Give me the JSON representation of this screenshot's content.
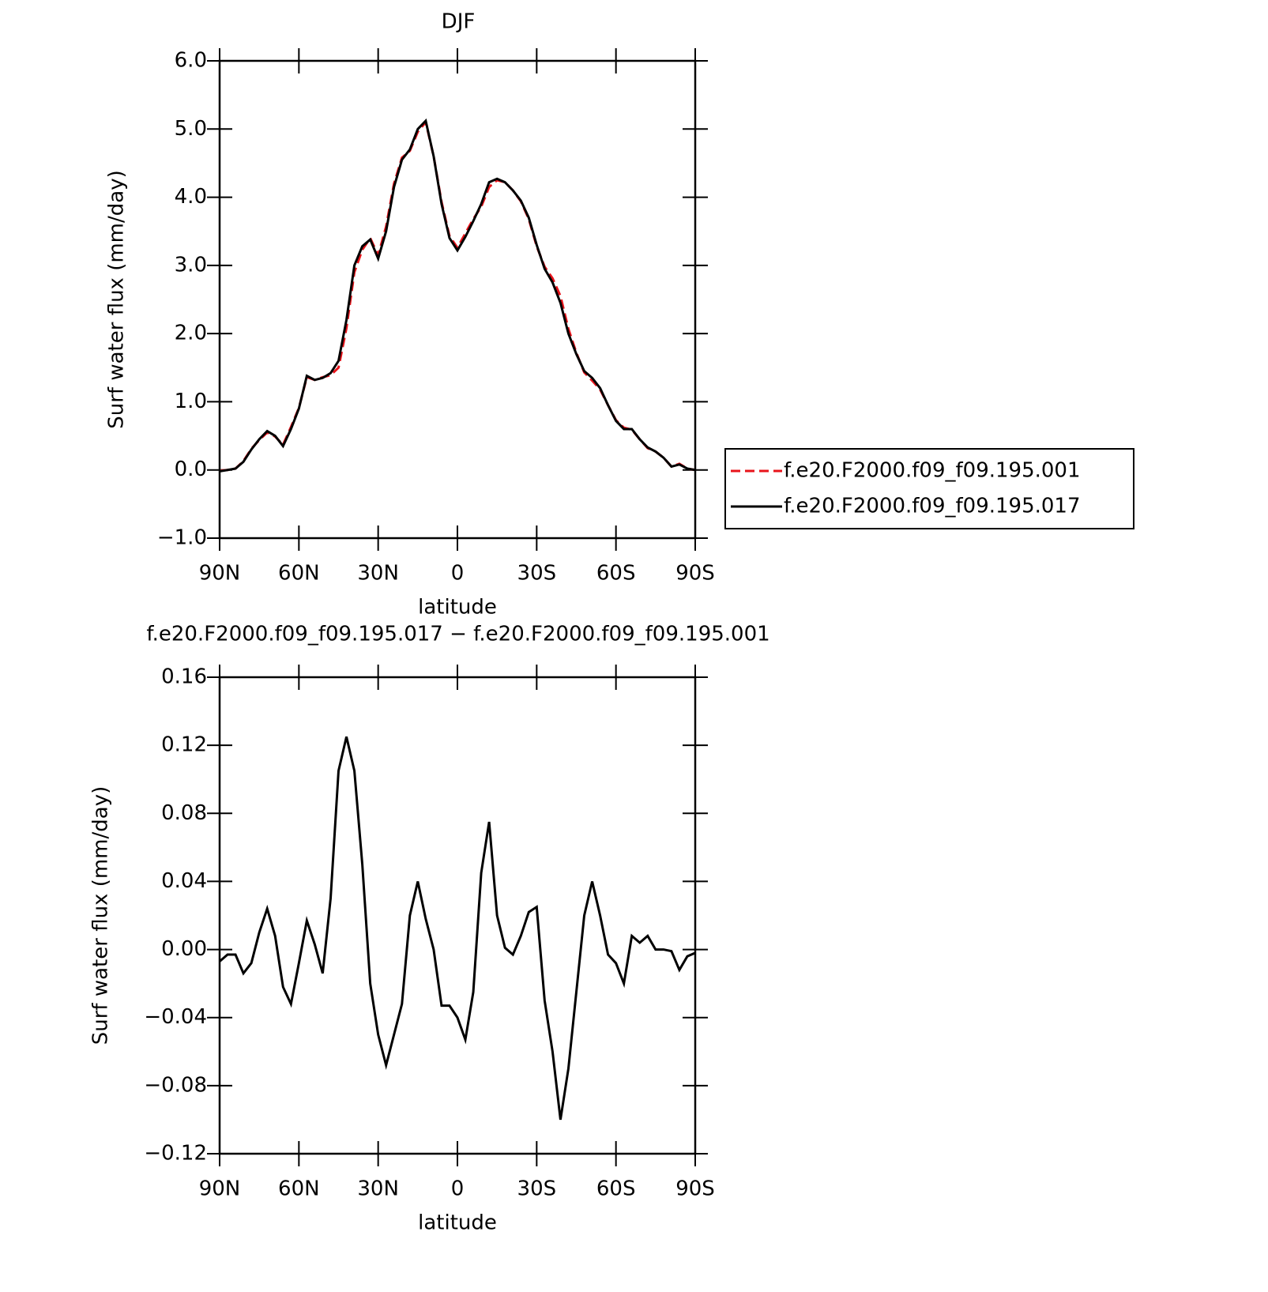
{
  "chart_data": [
    {
      "type": "line",
      "title": "DJF",
      "ylabel": "Surf water flux (mm/day)",
      "xlabel": "latitude",
      "x": [
        90,
        87,
        84,
        81,
        78,
        75,
        72,
        69,
        66,
        63,
        60,
        57,
        54,
        51,
        48,
        45,
        42,
        39,
        36,
        33,
        30,
        27,
        24,
        21,
        18,
        15,
        12,
        9,
        6,
        3,
        0,
        -3,
        -6,
        -9,
        -12,
        -15,
        -18,
        -21,
        -24,
        -27,
        -30,
        -33,
        -36,
        -39,
        -42,
        -45,
        -48,
        -51,
        -54,
        -57,
        -60,
        -63,
        -66,
        -69,
        -72,
        -75,
        -78,
        -81,
        -84,
        -87,
        -90
      ],
      "series": [
        {
          "name": "f.e20.F2000.f09_f09.195.001",
          "color": "#e8141b",
          "line_style": "dashed",
          "values": [
            -0.01,
            0.0,
            0.02,
            0.13,
            0.31,
            0.44,
            0.55,
            0.49,
            0.37,
            0.63,
            0.91,
            1.36,
            1.32,
            1.36,
            1.39,
            1.5,
            2.08,
            2.9,
            3.23,
            3.4,
            3.15,
            3.57,
            4.2,
            4.58,
            4.68,
            4.96,
            5.1,
            4.6,
            3.93,
            3.43,
            3.26,
            3.47,
            3.68,
            3.86,
            4.15,
            4.25,
            4.22,
            4.1,
            3.94,
            3.68,
            3.28,
            2.98,
            2.81,
            2.55,
            2.07,
            1.72,
            1.43,
            1.31,
            1.18,
            0.95,
            0.73,
            0.62,
            0.59,
            0.45,
            0.32,
            0.27,
            0.18,
            0.05,
            0.09,
            0.02,
            0.0
          ]
        },
        {
          "name": "f.e20.F2000.f09_f09.195.017",
          "color": "#000000",
          "line_style": "solid",
          "values": [
            -0.02,
            0.0,
            0.02,
            0.12,
            0.3,
            0.45,
            0.57,
            0.5,
            0.35,
            0.6,
            0.9,
            1.38,
            1.32,
            1.35,
            1.42,
            1.6,
            2.2,
            3.0,
            3.28,
            3.38,
            3.1,
            3.5,
            4.15,
            4.55,
            4.7,
            5.0,
            5.12,
            4.6,
            3.9,
            3.4,
            3.22,
            3.42,
            3.65,
            3.9,
            4.22,
            4.27,
            4.22,
            4.1,
            3.95,
            3.7,
            3.3,
            2.95,
            2.75,
            2.45,
            2.0,
            1.7,
            1.45,
            1.35,
            1.2,
            0.95,
            0.72,
            0.6,
            0.6,
            0.45,
            0.33,
            0.27,
            0.18,
            0.05,
            0.08,
            0.02,
            0.0
          ]
        }
      ],
      "xlim": [
        90,
        -90
      ],
      "xticks": [
        {
          "value": 90,
          "label": "90N"
        },
        {
          "value": 60,
          "label": "60N"
        },
        {
          "value": 30,
          "label": "30N"
        },
        0,
        {
          "value": -30,
          "label": "30S"
        },
        {
          "value": -60,
          "label": "60S"
        },
        {
          "value": -90,
          "label": "90S"
        }
      ],
      "ylim": [
        -1,
        6
      ],
      "yticks": [
        {
          "value": -1,
          "label": "−1.0"
        },
        {
          "value": 0,
          "label": "0.0"
        },
        {
          "value": 1,
          "label": "1.0"
        },
        {
          "value": 2,
          "label": "2.0"
        },
        {
          "value": 3,
          "label": "3.0"
        },
        {
          "value": 4,
          "label": "4.0"
        },
        {
          "value": 5,
          "label": "5.0"
        },
        {
          "value": 6,
          "label": "6.0"
        }
      ],
      "legend": "outside-right"
    },
    {
      "type": "line",
      "title": "f.e20.F2000.f09_f09.195.017 − f.e20.F2000.f09_f09.195.001",
      "ylabel": "Surf water flux (mm/day)",
      "xlabel": "latitude",
      "x": [
        90,
        87,
        84,
        81,
        78,
        75,
        72,
        69,
        66,
        63,
        60,
        57,
        54,
        51,
        48,
        45,
        42,
        39,
        36,
        33,
        30,
        27,
        24,
        21,
        18,
        15,
        12,
        9,
        6,
        3,
        0,
        -3,
        -6,
        -9,
        -12,
        -15,
        -18,
        -21,
        -24,
        -27,
        -30,
        -33,
        -36,
        -39,
        -42,
        -45,
        -48,
        -51,
        -54,
        -57,
        -60,
        -63,
        -66,
        -69,
        -72,
        -75,
        -78,
        -81,
        -84,
        -87,
        -90
      ],
      "color": "#000000",
      "values": [
        -0.007,
        -0.003,
        -0.003,
        -0.014,
        -0.008,
        0.01,
        0.024,
        0.008,
        -0.022,
        -0.032,
        -0.008,
        0.017,
        0.003,
        -0.014,
        0.03,
        0.105,
        0.125,
        0.105,
        0.05,
        -0.02,
        -0.05,
        -0.068,
        -0.05,
        -0.032,
        0.02,
        0.04,
        0.018,
        0.0,
        -0.033,
        -0.033,
        -0.04,
        -0.053,
        -0.025,
        0.045,
        0.075,
        0.02,
        0.001,
        -0.003,
        0.008,
        0.022,
        0.025,
        -0.03,
        -0.06,
        -0.1,
        -0.07,
        -0.025,
        0.02,
        0.04,
        0.02,
        -0.003,
        -0.008,
        -0.02,
        0.008,
        0.004,
        0.008,
        0.0,
        0.0,
        -0.001,
        -0.012,
        -0.004,
        -0.002
      ],
      "xlim": [
        90,
        -90
      ],
      "xticks": [
        {
          "value": 90,
          "label": "90N"
        },
        {
          "value": 60,
          "label": "60N"
        },
        {
          "value": 30,
          "label": "30N"
        },
        0,
        {
          "value": -30,
          "label": "30S"
        },
        {
          "value": -60,
          "label": "60S"
        },
        {
          "value": -90,
          "label": "90S"
        }
      ],
      "ylim": [
        -0.12,
        0.16
      ],
      "yticks": [
        {
          "value": -0.12,
          "label": "−0.12"
        },
        {
          "value": -0.08,
          "label": "−0.08"
        },
        {
          "value": -0.04,
          "label": "−0.04"
        },
        {
          "value": 0,
          "label": "0.00"
        },
        {
          "value": 0.04,
          "label": "0.04"
        },
        {
          "value": 0.08,
          "label": "0.08"
        },
        {
          "value": 0.12,
          "label": "0.12"
        },
        {
          "value": 0.16,
          "label": "0.16"
        }
      ]
    }
  ]
}
